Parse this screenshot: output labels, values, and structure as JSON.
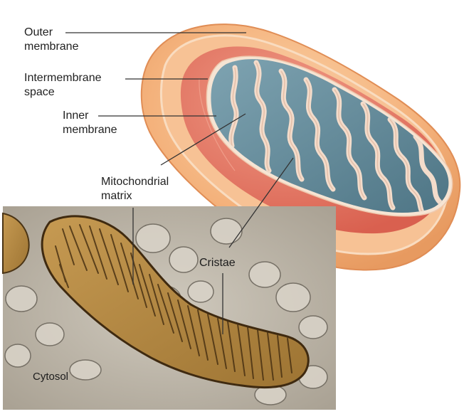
{
  "labels": {
    "outer_membrane": [
      "Outer",
      "membrane"
    ],
    "intermembrane_space": [
      "Intermembrane",
      "space"
    ],
    "inner_membrane": [
      "Inner",
      "membrane"
    ],
    "mitochondrial_matrix": [
      "Mitochondrial",
      "matrix"
    ],
    "cristae": "Cristae",
    "cytosol": "Cytosol"
  },
  "colors": {
    "outer_membrane": "#f4b27c",
    "intermembrane": "#e9735f",
    "inner_membrane": "#f6e4d3",
    "matrix": "#5f8a9c",
    "micrograph_bg": "#bdb6a9",
    "micrograph_organelle": "#b08540"
  }
}
